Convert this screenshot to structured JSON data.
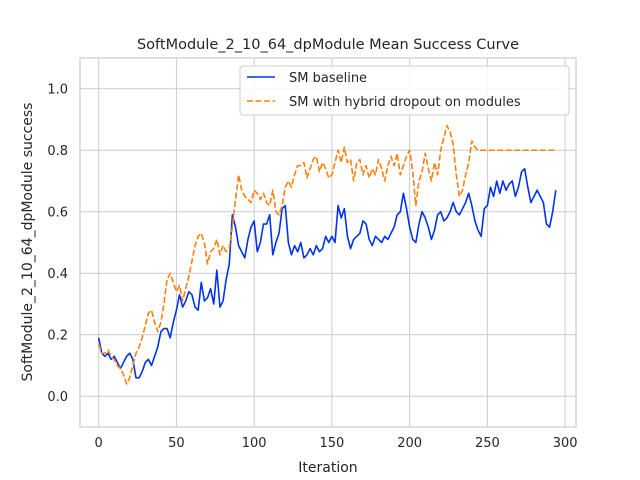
{
  "chart_data": {
    "type": "line",
    "title": "SoftModule_2_10_64_dpModule Mean Success Curve",
    "xlabel": "Iteration",
    "ylabel": "SoftModule_2_10_64_dpModule success",
    "xlim": [
      -12,
      307
    ],
    "ylim": [
      -0.1,
      1.1
    ],
    "xticks": [
      0,
      50,
      100,
      150,
      200,
      250,
      300
    ],
    "yticks": [
      0.0,
      0.2,
      0.4,
      0.6,
      0.8,
      1.0
    ],
    "xtick_labels": [
      "0",
      "50",
      "100",
      "150",
      "200",
      "250",
      "300"
    ],
    "ytick_labels": [
      "0.0",
      "0.2",
      "0.4",
      "0.6",
      "0.8",
      "1.0"
    ],
    "grid": true,
    "legend_position": "top-right",
    "series": [
      {
        "name": "SM baseline",
        "color": "#0033ee",
        "style": "solid",
        "points": [
          [
            0,
            0.19
          ],
          [
            2,
            0.14
          ],
          [
            4,
            0.13
          ],
          [
            6,
            0.14
          ],
          [
            8,
            0.12
          ],
          [
            10,
            0.13
          ],
          [
            12,
            0.11
          ],
          [
            14,
            0.09
          ],
          [
            16,
            0.11
          ],
          [
            18,
            0.13
          ],
          [
            20,
            0.14
          ],
          [
            22,
            0.12
          ],
          [
            24,
            0.06
          ],
          [
            26,
            0.06
          ],
          [
            28,
            0.08
          ],
          [
            30,
            0.11
          ],
          [
            32,
            0.12
          ],
          [
            34,
            0.1
          ],
          [
            36,
            0.13
          ],
          [
            38,
            0.16
          ],
          [
            40,
            0.21
          ],
          [
            42,
            0.22
          ],
          [
            44,
            0.22
          ],
          [
            46,
            0.19
          ],
          [
            48,
            0.24
          ],
          [
            50,
            0.28
          ],
          [
            52,
            0.33
          ],
          [
            54,
            0.29
          ],
          [
            56,
            0.31
          ],
          [
            58,
            0.34
          ],
          [
            60,
            0.33
          ],
          [
            62,
            0.29
          ],
          [
            64,
            0.28
          ],
          [
            66,
            0.37
          ],
          [
            68,
            0.31
          ],
          [
            70,
            0.32
          ],
          [
            72,
            0.35
          ],
          [
            74,
            0.3
          ],
          [
            76,
            0.41
          ],
          [
            78,
            0.29
          ],
          [
            80,
            0.31
          ],
          [
            82,
            0.38
          ],
          [
            84,
            0.43
          ],
          [
            86,
            0.59
          ],
          [
            88,
            0.55
          ],
          [
            90,
            0.49
          ],
          [
            92,
            0.47
          ],
          [
            94,
            0.45
          ],
          [
            96,
            0.51
          ],
          [
            98,
            0.55
          ],
          [
            100,
            0.57
          ],
          [
            102,
            0.47
          ],
          [
            104,
            0.5
          ],
          [
            106,
            0.56
          ],
          [
            108,
            0.56
          ],
          [
            110,
            0.59
          ],
          [
            112,
            0.46
          ],
          [
            114,
            0.5
          ],
          [
            116,
            0.53
          ],
          [
            118,
            0.61
          ],
          [
            120,
            0.62
          ],
          [
            122,
            0.5
          ],
          [
            124,
            0.46
          ],
          [
            126,
            0.49
          ],
          [
            128,
            0.47
          ],
          [
            130,
            0.5
          ],
          [
            132,
            0.45
          ],
          [
            134,
            0.46
          ],
          [
            136,
            0.48
          ],
          [
            138,
            0.46
          ],
          [
            140,
            0.49
          ],
          [
            142,
            0.47
          ],
          [
            144,
            0.48
          ],
          [
            146,
            0.52
          ],
          [
            148,
            0.5
          ],
          [
            150,
            0.52
          ],
          [
            152,
            0.5
          ],
          [
            154,
            0.62
          ],
          [
            156,
            0.58
          ],
          [
            158,
            0.61
          ],
          [
            160,
            0.52
          ],
          [
            162,
            0.48
          ],
          [
            164,
            0.51
          ],
          [
            166,
            0.52
          ],
          [
            168,
            0.53
          ],
          [
            170,
            0.57
          ],
          [
            172,
            0.56
          ],
          [
            174,
            0.51
          ],
          [
            176,
            0.49
          ],
          [
            178,
            0.52
          ],
          [
            180,
            0.51
          ],
          [
            182,
            0.5
          ],
          [
            184,
            0.52
          ],
          [
            186,
            0.51
          ],
          [
            188,
            0.53
          ],
          [
            190,
            0.55
          ],
          [
            192,
            0.59
          ],
          [
            194,
            0.6
          ],
          [
            196,
            0.66
          ],
          [
            198,
            0.61
          ],
          [
            200,
            0.55
          ],
          [
            202,
            0.51
          ],
          [
            204,
            0.5
          ],
          [
            206,
            0.56
          ],
          [
            208,
            0.6
          ],
          [
            210,
            0.58
          ],
          [
            212,
            0.55
          ],
          [
            214,
            0.51
          ],
          [
            216,
            0.54
          ],
          [
            218,
            0.59
          ],
          [
            220,
            0.6
          ],
          [
            222,
            0.57
          ],
          [
            224,
            0.58
          ],
          [
            226,
            0.6
          ],
          [
            228,
            0.63
          ],
          [
            230,
            0.6
          ],
          [
            232,
            0.59
          ],
          [
            234,
            0.61
          ],
          [
            236,
            0.63
          ],
          [
            238,
            0.66
          ],
          [
            240,
            0.62
          ],
          [
            242,
            0.57
          ],
          [
            244,
            0.54
          ],
          [
            246,
            0.52
          ],
          [
            248,
            0.61
          ],
          [
            250,
            0.62
          ],
          [
            252,
            0.68
          ],
          [
            254,
            0.65
          ],
          [
            256,
            0.7
          ],
          [
            258,
            0.66
          ],
          [
            260,
            0.7
          ],
          [
            262,
            0.67
          ],
          [
            264,
            0.69
          ],
          [
            266,
            0.7
          ],
          [
            268,
            0.65
          ],
          [
            270,
            0.68
          ],
          [
            272,
            0.73
          ],
          [
            274,
            0.74
          ],
          [
            276,
            0.68
          ],
          [
            278,
            0.63
          ],
          [
            280,
            0.65
          ],
          [
            282,
            0.67
          ],
          [
            284,
            0.65
          ],
          [
            286,
            0.63
          ],
          [
            288,
            0.56
          ],
          [
            290,
            0.55
          ],
          [
            292,
            0.6
          ],
          [
            294,
            0.67
          ]
        ]
      },
      {
        "name": "SM with hybrid dropout on modules",
        "color": "#ff7f0e",
        "style": "dashed",
        "points": [
          [
            0,
            0.17
          ],
          [
            2,
            0.14
          ],
          [
            4,
            0.14
          ],
          [
            6,
            0.15
          ],
          [
            8,
            0.13
          ],
          [
            10,
            0.12
          ],
          [
            12,
            0.1
          ],
          [
            14,
            0.09
          ],
          [
            16,
            0.07
          ],
          [
            18,
            0.04
          ],
          [
            20,
            0.06
          ],
          [
            22,
            0.1
          ],
          [
            24,
            0.14
          ],
          [
            26,
            0.16
          ],
          [
            28,
            0.19
          ],
          [
            30,
            0.23
          ],
          [
            32,
            0.27
          ],
          [
            34,
            0.28
          ],
          [
            36,
            0.24
          ],
          [
            38,
            0.21
          ],
          [
            40,
            0.24
          ],
          [
            42,
            0.3
          ],
          [
            44,
            0.38
          ],
          [
            46,
            0.4
          ],
          [
            48,
            0.37
          ],
          [
            50,
            0.34
          ],
          [
            52,
            0.36
          ],
          [
            54,
            0.31
          ],
          [
            56,
            0.35
          ],
          [
            58,
            0.39
          ],
          [
            60,
            0.44
          ],
          [
            62,
            0.49
          ],
          [
            64,
            0.52
          ],
          [
            66,
            0.53
          ],
          [
            68,
            0.5
          ],
          [
            70,
            0.43
          ],
          [
            72,
            0.47
          ],
          [
            74,
            0.48
          ],
          [
            76,
            0.51
          ],
          [
            78,
            0.46
          ],
          [
            80,
            0.49
          ],
          [
            82,
            0.47
          ],
          [
            84,
            0.48
          ],
          [
            86,
            0.55
          ],
          [
            88,
            0.64
          ],
          [
            90,
            0.72
          ],
          [
            92,
            0.67
          ],
          [
            94,
            0.65
          ],
          [
            96,
            0.64
          ],
          [
            98,
            0.63
          ],
          [
            100,
            0.67
          ],
          [
            102,
            0.66
          ],
          [
            104,
            0.64
          ],
          [
            106,
            0.66
          ],
          [
            108,
            0.63
          ],
          [
            110,
            0.62
          ],
          [
            112,
            0.67
          ],
          [
            114,
            0.6
          ],
          [
            116,
            0.59
          ],
          [
            118,
            0.62
          ],
          [
            120,
            0.68
          ],
          [
            122,
            0.7
          ],
          [
            124,
            0.68
          ],
          [
            126,
            0.72
          ],
          [
            128,
            0.75
          ],
          [
            130,
            0.75
          ],
          [
            132,
            0.76
          ],
          [
            134,
            0.71
          ],
          [
            136,
            0.74
          ],
          [
            138,
            0.77
          ],
          [
            140,
            0.78
          ],
          [
            142,
            0.73
          ],
          [
            144,
            0.76
          ],
          [
            146,
            0.74
          ],
          [
            148,
            0.71
          ],
          [
            150,
            0.72
          ],
          [
            152,
            0.76
          ],
          [
            154,
            0.8
          ],
          [
            156,
            0.76
          ],
          [
            158,
            0.81
          ],
          [
            160,
            0.76
          ],
          [
            162,
            0.77
          ],
          [
            164,
            0.7
          ],
          [
            166,
            0.76
          ],
          [
            168,
            0.77
          ],
          [
            170,
            0.72
          ],
          [
            172,
            0.75
          ],
          [
            174,
            0.71
          ],
          [
            176,
            0.74
          ],
          [
            178,
            0.72
          ],
          [
            180,
            0.77
          ],
          [
            182,
            0.74
          ],
          [
            184,
            0.7
          ],
          [
            186,
            0.75
          ],
          [
            188,
            0.78
          ],
          [
            190,
            0.75
          ],
          [
            192,
            0.79
          ],
          [
            194,
            0.72
          ],
          [
            196,
            0.75
          ],
          [
            198,
            0.78
          ],
          [
            200,
            0.8
          ],
          [
            202,
            0.73
          ],
          [
            204,
            0.62
          ],
          [
            206,
            0.7
          ],
          [
            208,
            0.73
          ],
          [
            210,
            0.79
          ],
          [
            212,
            0.74
          ],
          [
            214,
            0.7
          ],
          [
            216,
            0.76
          ],
          [
            218,
            0.72
          ],
          [
            220,
            0.8
          ],
          [
            222,
            0.84
          ],
          [
            224,
            0.88
          ],
          [
            226,
            0.86
          ],
          [
            228,
            0.82
          ],
          [
            230,
            0.72
          ],
          [
            232,
            0.65
          ],
          [
            234,
            0.67
          ],
          [
            236,
            0.72
          ],
          [
            238,
            0.76
          ],
          [
            240,
            0.83
          ],
          [
            242,
            0.81
          ],
          [
            244,
            0.8
          ],
          [
            246,
            0.8
          ],
          [
            250,
            0.8
          ],
          [
            260,
            0.8
          ],
          [
            270,
            0.8
          ],
          [
            280,
            0.8
          ],
          [
            290,
            0.8
          ],
          [
            294,
            0.8
          ]
        ]
      }
    ]
  }
}
